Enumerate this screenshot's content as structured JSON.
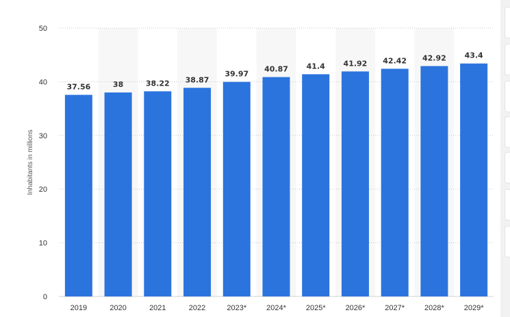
{
  "chart_data": {
    "type": "bar",
    "ylabel": "Inhabitants in millions",
    "ylim": [
      0,
      50
    ],
    "yticks": [
      "0",
      "10",
      "20",
      "30",
      "40",
      "50"
    ],
    "grid": true,
    "categories": [
      "2019",
      "2020",
      "2021",
      "2022",
      "2023*",
      "2024*",
      "2025*",
      "2026*",
      "2027*",
      "2028*",
      "2029*"
    ],
    "values": [
      37.56,
      38,
      38.22,
      38.87,
      39.97,
      40.87,
      41.4,
      41.92,
      42.42,
      42.92,
      43.4
    ],
    "value_labels": [
      "37.56",
      "38",
      "38.22",
      "38.87",
      "39.97",
      "40.87",
      "41.4",
      "41.92",
      "42.42",
      "42.92",
      "43.4"
    ],
    "bar_color": "#2b74de",
    "band_color": "#f7f7f7"
  },
  "side_toolbar": {
    "buttons": [
      "toolbar-button-1",
      "toolbar-button-2",
      "toolbar-button-3",
      "toolbar-button-4",
      "toolbar-button-5",
      "toolbar-button-6",
      "toolbar-button-7"
    ]
  }
}
